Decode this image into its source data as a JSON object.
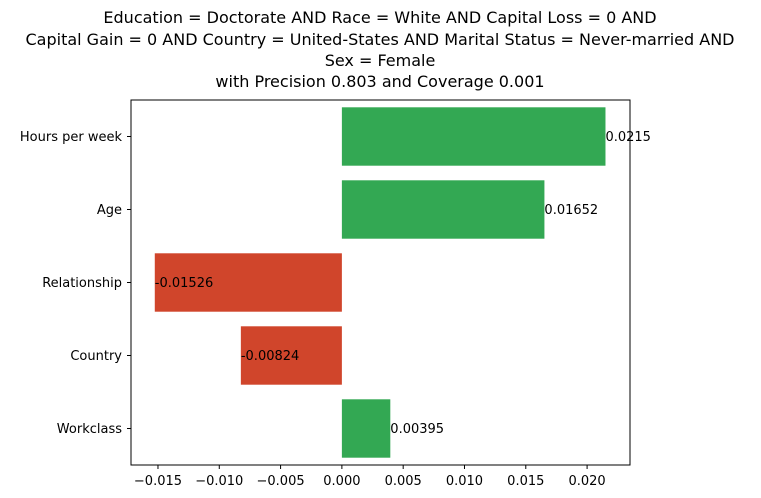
{
  "chart_data": {
    "type": "bar",
    "orientation": "horizontal",
    "title_lines": [
      "Education = Doctorate AND Race = White AND Capital Loss = 0 AND",
      "Capital Gain = 0 AND Country = United-States AND Marital Status = Never-married AND",
      "Sex = Female",
      "with Precision 0.803 and Coverage 0.001"
    ],
    "categories": [
      "Hours per week",
      "Age",
      "Relationship",
      "Country",
      "Workclass"
    ],
    "values": [
      0.0215,
      0.01652,
      -0.01526,
      -0.00824,
      0.00395
    ],
    "value_labels": [
      "0.0215",
      "0.01652",
      "-0.01526",
      "-0.00824",
      "0.00395"
    ],
    "xlim": [
      -0.0172,
      0.0235
    ],
    "xticks": [
      -0.015,
      -0.01,
      -0.005,
      0.0,
      0.005,
      0.01,
      0.015,
      0.02
    ],
    "xtick_labels": [
      "−0.015",
      "−0.010",
      "−0.005",
      "0.000",
      "0.005",
      "0.010",
      "0.015",
      "0.020"
    ],
    "xlabel": "",
    "ylabel": "",
    "grid": false,
    "colors": {
      "positive": "#33a853",
      "negative": "#d0452b"
    }
  }
}
